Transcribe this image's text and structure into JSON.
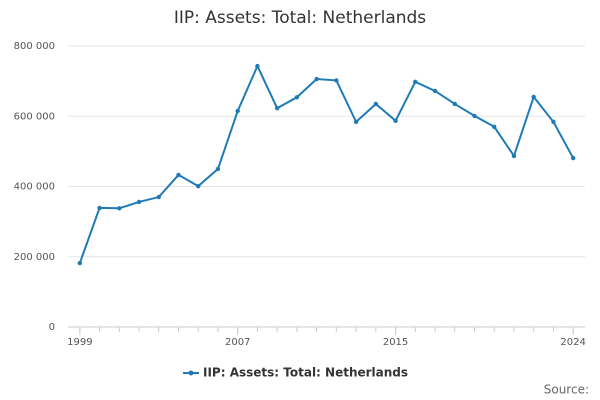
{
  "chart_data": {
    "type": "line",
    "title": "IIP: Assets: Total: Netherlands",
    "x": [
      1999,
      2000,
      2001,
      2002,
      2003,
      2004,
      2005,
      2006,
      2007,
      2008,
      2009,
      2010,
      2011,
      2012,
      2013,
      2014,
      2015,
      2016,
      2017,
      2018,
      2019,
      2020,
      2021,
      2022,
      2023,
      2024
    ],
    "series": [
      {
        "name": "IIP: Assets: Total: Netherlands",
        "color": "#1f7bb6",
        "values": [
          182000,
          339000,
          338000,
          356000,
          370000,
          433000,
          401000,
          450000,
          615000,
          743000,
          623000,
          654000,
          706000,
          702000,
          584000,
          635000,
          587000,
          698000,
          672000,
          635000,
          601000,
          570000,
          487000,
          655000,
          584000,
          481000
        ]
      }
    ],
    "xlim": [
      1998.4,
      2024.6
    ],
    "xticks": [
      1999,
      2007,
      2015,
      2024
    ],
    "ylim": [
      0,
      800000
    ],
    "yticks": [
      0,
      {
        "value": 200000,
        "label": "200 000"
      },
      {
        "value": 400000,
        "label": "400 000"
      },
      {
        "value": 600000,
        "label": "600 000"
      },
      {
        "value": 800000,
        "label": "800 000"
      }
    ],
    "grid": true,
    "source": "Source:"
  }
}
